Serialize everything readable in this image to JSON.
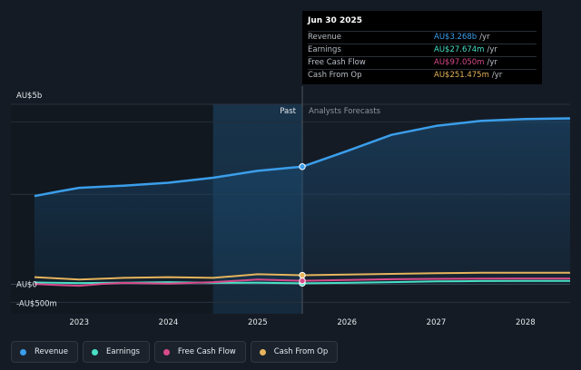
{
  "chart_data": {
    "type": "line",
    "y_axis_labels": [
      "AU$5b",
      "AU$0",
      "-AU$500m"
    ],
    "ylim": [
      -500,
      5000
    ],
    "xlim": [
      2022.5,
      2028.5
    ],
    "x_ticks": [
      2023,
      2024,
      2025,
      2026,
      2027,
      2028
    ],
    "x_tick_labels": [
      "2023",
      "2024",
      "2025",
      "2026",
      "2027",
      "2028"
    ],
    "past_label": "Past",
    "forecast_label": "Analysts Forecasts",
    "past_end": 2025.5,
    "highlight_start": 2024.5,
    "grid": true,
    "series": [
      {
        "name": "Revenue",
        "color": "#3b9eea",
        "area": true,
        "points": [
          [
            2022.5,
            2450
          ],
          [
            2022.75,
            2570
          ],
          [
            2023.0,
            2680
          ],
          [
            2023.5,
            2740
          ],
          [
            2024.0,
            2820
          ],
          [
            2024.5,
            2960
          ],
          [
            2025.0,
            3150
          ],
          [
            2025.5,
            3268
          ],
          [
            2026.0,
            3700
          ],
          [
            2026.5,
            4150
          ],
          [
            2027.0,
            4400
          ],
          [
            2027.5,
            4540
          ],
          [
            2028.0,
            4590
          ],
          [
            2028.5,
            4610
          ]
        ]
      },
      {
        "name": "Earnings",
        "color": "#49e0c6",
        "points": [
          [
            2022.5,
            50
          ],
          [
            2023.0,
            35
          ],
          [
            2023.5,
            45
          ],
          [
            2024.0,
            60
          ],
          [
            2024.5,
            40
          ],
          [
            2025.0,
            45
          ],
          [
            2025.5,
            27.674
          ],
          [
            2026.0,
            40
          ],
          [
            2026.5,
            60
          ],
          [
            2027.0,
            80
          ],
          [
            2027.5,
            90
          ],
          [
            2028.0,
            95
          ],
          [
            2028.5,
            95
          ]
        ]
      },
      {
        "name": "Free Cash Flow",
        "color": "#d94a8a",
        "points": [
          [
            2022.5,
            10
          ],
          [
            2022.75,
            -20
          ],
          [
            2023.0,
            -40
          ],
          [
            2023.25,
            10
          ],
          [
            2023.5,
            40
          ],
          [
            2024.0,
            20
          ],
          [
            2024.5,
            60
          ],
          [
            2025.0,
            130
          ],
          [
            2025.5,
            97.05
          ],
          [
            2026.0,
            120
          ],
          [
            2026.5,
            140
          ],
          [
            2027.0,
            150
          ],
          [
            2027.5,
            155
          ],
          [
            2028.0,
            160
          ],
          [
            2028.5,
            160
          ]
        ]
      },
      {
        "name": "Cash From Op",
        "color": "#e6b45c",
        "points": [
          [
            2022.5,
            200
          ],
          [
            2023.0,
            130
          ],
          [
            2023.5,
            180
          ],
          [
            2024.0,
            200
          ],
          [
            2024.5,
            180
          ],
          [
            2025.0,
            280
          ],
          [
            2025.5,
            251.475
          ],
          [
            2026.0,
            270
          ],
          [
            2026.5,
            290
          ],
          [
            2027.0,
            310
          ],
          [
            2027.5,
            320
          ],
          [
            2028.0,
            320
          ],
          [
            2028.5,
            320
          ]
        ]
      }
    ]
  },
  "tooltip": {
    "date": "Jun 30 2025",
    "rows": [
      {
        "label": "Revenue",
        "value": "AU$3.268b",
        "unit": "/yr",
        "color": "#3b9eea"
      },
      {
        "label": "Earnings",
        "value": "AU$27.674m",
        "unit": "/yr",
        "color": "#49e0c6"
      },
      {
        "label": "Free Cash Flow",
        "value": "AU$97.050m",
        "unit": "/yr",
        "color": "#d94a8a"
      },
      {
        "label": "Cash From Op",
        "value": "AU$251.475m",
        "unit": "/yr",
        "color": "#e6b45c"
      }
    ]
  },
  "legend": [
    {
      "label": "Revenue",
      "color": "#3b9eea"
    },
    {
      "label": "Earnings",
      "color": "#49e0c6"
    },
    {
      "label": "Free Cash Flow",
      "color": "#d94a8a"
    },
    {
      "label": "Cash From Op",
      "color": "#e6b45c"
    }
  ]
}
